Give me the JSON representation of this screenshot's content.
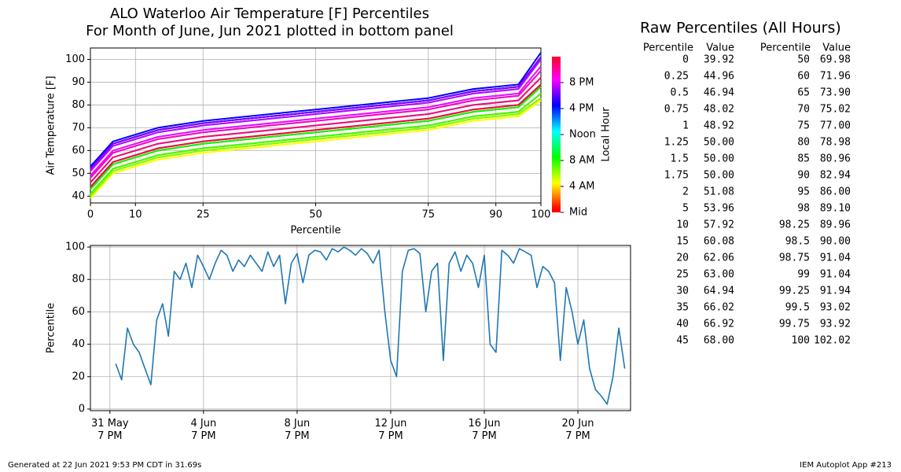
{
  "chart_data": [
    {
      "type": "line",
      "title": "ALO Waterloo Air Temperature [F] Percentiles",
      "subtitle": "For Month of June, Jun 2021 plotted in bottom panel",
      "xlabel": "Percentile",
      "ylabel": "Air Temperature [F]",
      "x": [
        0,
        5,
        10,
        15,
        25,
        35,
        50,
        65,
        75,
        80,
        85,
        95,
        100
      ],
      "series": [
        {
          "color": "hsl(0,100%,50%)",
          "values": [
            43,
            54,
            57,
            60,
            63,
            65,
            68,
            71,
            73,
            75,
            77,
            79,
            88
          ]
        },
        {
          "color": "hsl(15,100%,50%)",
          "values": [
            41,
            52,
            55,
            58,
            61,
            63,
            66,
            69,
            71,
            73,
            75,
            77,
            85
          ]
        },
        {
          "color": "hsl(30,100%,50%)",
          "values": [
            40,
            51,
            54,
            57,
            60,
            62,
            65,
            68,
            70,
            72,
            74,
            76,
            83
          ]
        },
        {
          "color": "hsl(45,100%,50%)",
          "values": [
            40,
            51,
            54,
            57,
            60,
            62,
            65,
            68,
            70,
            72,
            74,
            76,
            83
          ]
        },
        {
          "color": "hsl(60,100%,50%)",
          "values": [
            39,
            50,
            53,
            56,
            59,
            61,
            64,
            67,
            69,
            71,
            73,
            75,
            82
          ]
        },
        {
          "color": "hsl(75,100%,50%)",
          "values": [
            40,
            51,
            54,
            57,
            60,
            62,
            65,
            68,
            70,
            72,
            74,
            76,
            83
          ]
        },
        {
          "color": "hsl(90,100%,50%)",
          "values": [
            40,
            51,
            54,
            57,
            60,
            62,
            65,
            68,
            70,
            72,
            74,
            76,
            83
          ]
        },
        {
          "color": "hsl(105,100%,50%)",
          "values": [
            41,
            52,
            55,
            58,
            61,
            63,
            66,
            69,
            71,
            73,
            75,
            77,
            85
          ]
        },
        {
          "color": "hsl(120,100%,50%)",
          "values": [
            43,
            54,
            57,
            60,
            63,
            65,
            68,
            71,
            73,
            75,
            77,
            79,
            88
          ]
        },
        {
          "color": "hsl(135,100%,50%)",
          "values": [
            44,
            55,
            58,
            61,
            64,
            66,
            69,
            72,
            74,
            76,
            78,
            80,
            89
          ]
        },
        {
          "color": "hsl(150,100%,50%)",
          "values": [
            46,
            57,
            60,
            63,
            66,
            68,
            71,
            74,
            76,
            78,
            80,
            82,
            92
          ]
        },
        {
          "color": "hsl(165,100%,50%)",
          "values": [
            48,
            59,
            62,
            65,
            68,
            70,
            73,
            76,
            78,
            80,
            82,
            84,
            95
          ]
        },
        {
          "color": "hsl(180,100%,50%)",
          "values": [
            49,
            60,
            63,
            66,
            69,
            71,
            74,
            77,
            79,
            81,
            83,
            85,
            97
          ]
        },
        {
          "color": "hsl(195,100%,50%)",
          "values": [
            51,
            62,
            65,
            68,
            71,
            73,
            76,
            79,
            81,
            83,
            85,
            87,
            100
          ]
        },
        {
          "color": "hsl(210,100%,50%)",
          "values": [
            52,
            63,
            66,
            69,
            72,
            74,
            77,
            80,
            82,
            84,
            86,
            88,
            101
          ]
        },
        {
          "color": "hsl(225,100%,50%)",
          "values": [
            52,
            63,
            66,
            69,
            72,
            74,
            77,
            80,
            82,
            84,
            86,
            88,
            101
          ]
        },
        {
          "color": "hsl(240,100%,50%)",
          "values": [
            53,
            64,
            67,
            70,
            73,
            75,
            78,
            81,
            83,
            85,
            87,
            89,
            103
          ]
        },
        {
          "color": "hsl(255,100%,50%)",
          "values": [
            52,
            63,
            66,
            69,
            72,
            74,
            77,
            80,
            82,
            84,
            86,
            88,
            101
          ]
        },
        {
          "color": "hsl(270,100%,50%)",
          "values": [
            52,
            63,
            66,
            69,
            72,
            74,
            77,
            80,
            82,
            84,
            86,
            88,
            101
          ]
        },
        {
          "color": "hsl(285,100%,50%)",
          "values": [
            51,
            62,
            65,
            68,
            71,
            73,
            76,
            79,
            81,
            83,
            85,
            87,
            100
          ]
        },
        {
          "color": "hsl(300,100%,50%)",
          "values": [
            49,
            60,
            63,
            66,
            69,
            71,
            74,
            77,
            79,
            81,
            83,
            85,
            97
          ]
        },
        {
          "color": "hsl(315,100%,50%)",
          "values": [
            48,
            59,
            62,
            65,
            68,
            70,
            73,
            76,
            78,
            80,
            82,
            84,
            95
          ]
        },
        {
          "color": "hsl(330,100%,50%)",
          "values": [
            46,
            57,
            60,
            63,
            66,
            68,
            71,
            74,
            76,
            78,
            80,
            82,
            92
          ]
        },
        {
          "color": "hsl(345,100%,50%)",
          "values": [
            44,
            55,
            58,
            61,
            64,
            66,
            69,
            72,
            74,
            76,
            78,
            80,
            89
          ]
        }
      ],
      "xlim": [
        0,
        100
      ],
      "xticks": [
        0,
        10,
        25,
        50,
        75,
        90,
        100
      ],
      "ylim": [
        37,
        105
      ],
      "yticks": [
        40,
        50,
        60,
        70,
        80,
        90,
        100
      ],
      "grid": true,
      "colorbar": {
        "label": "Local Hour",
        "lim": [
          0,
          24
        ],
        "ticks": [
          {
            "value": 0,
            "label": "Mid"
          },
          {
            "value": 4,
            "label": "4 AM"
          },
          {
            "value": 8,
            "label": "8 AM"
          },
          {
            "value": 12,
            "label": "Noon"
          },
          {
            "value": 16,
            "label": "4 PM"
          },
          {
            "value": 20,
            "label": "8 PM"
          }
        ]
      }
    },
    {
      "type": "line",
      "ylabel": "Percentile",
      "x": [
        "1 Jun 1 AM",
        "1 Jun 7 AM",
        "1 Jun 1 PM",
        "1 Jun 7 PM",
        "2 Jun 1 AM",
        "2 Jun 7 AM",
        "2 Jun 1 PM",
        "2 Jun 7 PM",
        "3 Jun 1 AM",
        "3 Jun 7 AM",
        "3 Jun 1 PM",
        "3 Jun 7 PM",
        "4 Jun 1 AM",
        "4 Jun 7 AM",
        "4 Jun 1 PM",
        "4 Jun 7 PM",
        "5 Jun 1 AM",
        "5 Jun 7 AM",
        "5 Jun 1 PM",
        "5 Jun 7 PM",
        "6 Jun 1 AM",
        "6 Jun 7 AM",
        "6 Jun 1 PM",
        "6 Jun 7 PM",
        "7 Jun 1 AM",
        "7 Jun 7 AM",
        "7 Jun 1 PM",
        "7 Jun 7 PM",
        "8 Jun 1 AM",
        "8 Jun 7 AM",
        "8 Jun 1 PM",
        "8 Jun 7 PM",
        "9 Jun 1 AM",
        "9 Jun 7 AM",
        "9 Jun 1 PM",
        "9 Jun 7 PM",
        "10 Jun 1 AM",
        "10 Jun 7 AM",
        "10 Jun 1 PM",
        "10 Jun 7 PM",
        "11 Jun 1 AM",
        "11 Jun 7 AM",
        "11 Jun 1 PM",
        "11 Jun 7 PM",
        "12 Jun 1 AM",
        "12 Jun 7 AM",
        "12 Jun 1 PM",
        "12 Jun 7 PM",
        "13 Jun 1 AM",
        "13 Jun 7 AM",
        "13 Jun 1 PM",
        "13 Jun 7 PM",
        "14 Jun 1 AM",
        "14 Jun 7 AM",
        "14 Jun 1 PM",
        "14 Jun 7 PM",
        "15 Jun 1 AM",
        "15 Jun 7 AM",
        "15 Jun 1 PM",
        "15 Jun 7 PM",
        "16 Jun 1 AM",
        "16 Jun 7 AM",
        "16 Jun 1 PM",
        "16 Jun 7 PM",
        "17 Jun 1 AM",
        "17 Jun 7 AM",
        "17 Jun 1 PM",
        "17 Jun 7 PM",
        "18 Jun 1 AM",
        "18 Jun 7 AM",
        "18 Jun 1 PM",
        "18 Jun 7 PM",
        "19 Jun 1 AM",
        "19 Jun 7 AM",
        "19 Jun 1 PM",
        "19 Jun 7 PM",
        "20 Jun 1 AM",
        "20 Jun 7 AM",
        "20 Jun 1 PM",
        "20 Jun 7 PM",
        "21 Jun 1 AM",
        "21 Jun 7 AM",
        "21 Jun 1 PM",
        "21 Jun 7 PM",
        "22 Jun 1 AM",
        "22 Jun 7 AM",
        "22 Jun 1 PM",
        "22 Jun 7 PM"
      ],
      "series": [
        {
          "color": "#1f77b4",
          "values": [
            28,
            18,
            50,
            40,
            35,
            25,
            15,
            55,
            65,
            45,
            85,
            80,
            90,
            75,
            95,
            88,
            80,
            90,
            98,
            95,
            85,
            92,
            88,
            95,
            90,
            85,
            97,
            88,
            95,
            65,
            90,
            96,
            78,
            95,
            98,
            97,
            92,
            99,
            97,
            100,
            98,
            95,
            99,
            96,
            90,
            98,
            60,
            30,
            20,
            85,
            98,
            99,
            96,
            60,
            85,
            90,
            30,
            90,
            97,
            85,
            95,
            90,
            75,
            95,
            40,
            35,
            98,
            95,
            90,
            99,
            97,
            95,
            75,
            88,
            85,
            78,
            30,
            75,
            60,
            40,
            55,
            25,
            12,
            8,
            3,
            20,
            50,
            25
          ]
        }
      ],
      "xlim": [
        "30 May 11 PM",
        "23 Jun 1 AM"
      ],
      "xticks": [
        {
          "value": "31 May 7 PM",
          "label": "31 May\n7 PM"
        },
        {
          "value": "4 Jun 7 PM",
          "label": "4 Jun\n7 PM"
        },
        {
          "value": "8 Jun 7 PM",
          "label": "8 Jun\n7 PM"
        },
        {
          "value": "12 Jun 7 PM",
          "label": "12 Jun\n7 PM"
        },
        {
          "value": "16 Jun 7 PM",
          "label": "16 Jun\n7 PM"
        },
        {
          "value": "20 Jun 7 PM",
          "label": "20 Jun\n7 PM"
        }
      ],
      "ylim": [
        -1,
        101
      ],
      "yticks": [
        0,
        20,
        40,
        60,
        80,
        100
      ],
      "grid": true
    }
  ],
  "table": {
    "title": "Raw Percentiles (All Hours)",
    "columns": [
      "Percentile",
      "Value",
      "Percentile",
      "Value"
    ],
    "rows": [
      [
        "0",
        "39.92",
        "50",
        "69.98"
      ],
      [
        "0.25",
        "44.96",
        "60",
        "71.96"
      ],
      [
        "0.5",
        "46.94",
        "65",
        "73.90"
      ],
      [
        "0.75",
        "48.02",
        "70",
        "75.02"
      ],
      [
        "1",
        "48.92",
        "75",
        "77.00"
      ],
      [
        "1.25",
        "50.00",
        "80",
        "78.98"
      ],
      [
        "1.5",
        "50.00",
        "85",
        "80.96"
      ],
      [
        "1.75",
        "50.00",
        "90",
        "82.94"
      ],
      [
        "2",
        "51.08",
        "95",
        "86.00"
      ],
      [
        "5",
        "53.96",
        "98",
        "89.10"
      ],
      [
        "10",
        "57.92",
        "98.25",
        "89.96"
      ],
      [
        "15",
        "60.08",
        "98.5",
        "90.00"
      ],
      [
        "20",
        "62.06",
        "98.75",
        "91.04"
      ],
      [
        "25",
        "63.00",
        "99",
        "91.04"
      ],
      [
        "30",
        "64.94",
        "99.25",
        "91.94"
      ],
      [
        "35",
        "66.02",
        "99.5",
        "93.02"
      ],
      [
        "40",
        "66.92",
        "99.75",
        "93.92"
      ],
      [
        "45",
        "68.00",
        "100",
        "102.02"
      ]
    ]
  },
  "footer": {
    "left": "Generated at 22 Jun 2021 9:53 PM CDT in 31.69s",
    "right": "IEM Autoplot App #213"
  }
}
